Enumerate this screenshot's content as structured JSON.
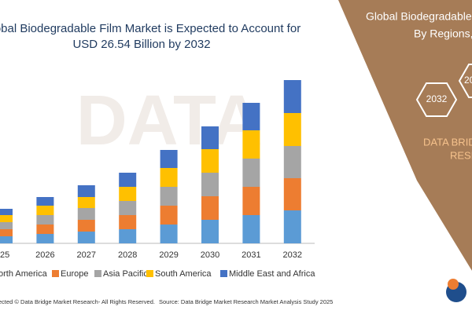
{
  "chart_data": {
    "type": "stacked_bar",
    "title": "Global Biodegradable Film Market is Expected to Account for",
    "subtitle": "USD 26.54 Billion by 2032",
    "categories": [
      "25",
      "2026",
      "2027",
      "2028",
      "2029",
      "2030",
      "2031",
      "2032"
    ],
    "series": [
      {
        "name": "orth America",
        "color": "#5b9bd5",
        "values": [
          9,
          12,
          15,
          18,
          24,
          30,
          36,
          42
        ]
      },
      {
        "name": "Europe",
        "color": "#ed7d31",
        "values": [
          9,
          12,
          15,
          18,
          24,
          30,
          36,
          41
        ]
      },
      {
        "name": "Asia Pacific",
        "color": "#a5a5a5",
        "values": [
          9,
          12,
          15,
          18,
          24,
          30,
          36,
          41
        ]
      },
      {
        "name": "South America",
        "color": "#ffc000",
        "values": [
          9,
          12,
          14,
          18,
          24,
          30,
          36,
          42
        ]
      },
      {
        "name": "Middle East and Africa",
        "color": "#4472c4",
        "values": [
          8,
          11,
          15,
          18,
          23,
          29,
          35,
          42
        ]
      }
    ],
    "ylim": [
      0,
      220
    ],
    "footer_left": "ected © Data Bridge Market Research- All Rights Reserved.",
    "footer_right": "Source: Data Bridge Market Research Market Analysis Study 2025",
    "panel": {
      "title_line1": "Global Biodegradable",
      "title_line2": "By Regions,",
      "hex1": "2032",
      "hex2": "20",
      "brand_line1": "DATA BRID",
      "brand_line2": "RESE"
    }
  }
}
